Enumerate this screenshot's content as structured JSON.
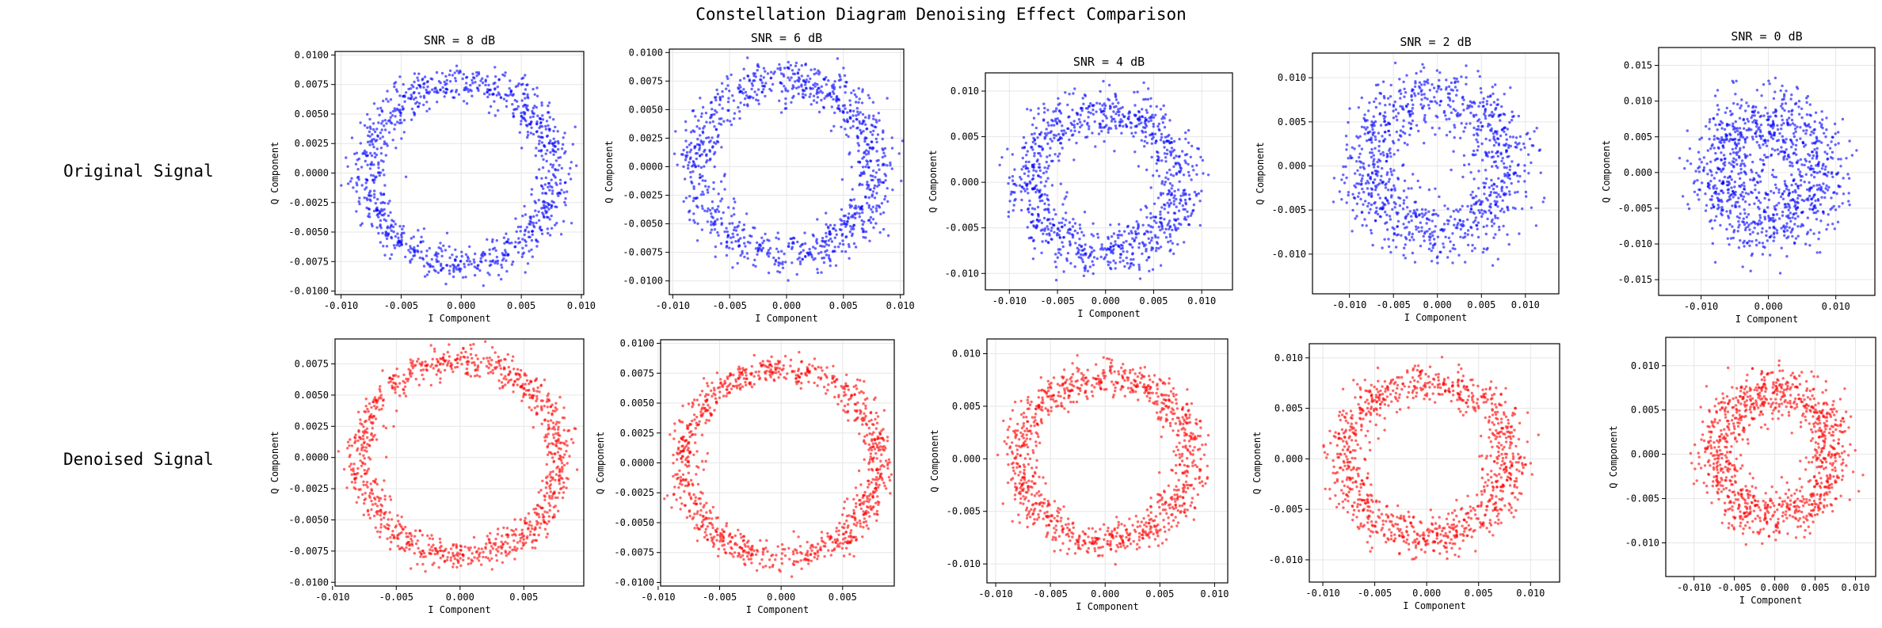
{
  "figure": {
    "title": "Constellation Diagram Denoising Effect Comparison",
    "row_labels": [
      "Original Signal",
      "Denoised Signal"
    ]
  },
  "chart_data": [
    {
      "type": "scatter",
      "row": 0,
      "col": 0,
      "title": "SNR = 8 dB",
      "xlabel": "I Component",
      "ylabel": "Q Component",
      "color": "#0000ff",
      "xlim": [
        -0.0105,
        0.0102
      ],
      "ylim": [
        -0.0103,
        0.0103
      ],
      "xticks": [
        -0.01,
        -0.005,
        0,
        0.005,
        0.01
      ],
      "yticks": [
        -0.01,
        -0.0075,
        -0.005,
        -0.0025,
        0,
        0.0025,
        0.005,
        0.0075,
        0.01
      ],
      "tick_decimals": 4,
      "ring_radius": 0.0078,
      "noise_sigma": 0.00075,
      "n_points": 1000,
      "seed": 11
    },
    {
      "type": "scatter",
      "row": 0,
      "col": 1,
      "title": "SNR = 6 dB",
      "xlabel": "I Component",
      "ylabel": "Q Component",
      "color": "#0000ff",
      "xlim": [
        -0.0103,
        0.0103
      ],
      "ylim": [
        -0.0112,
        0.0103
      ],
      "xticks": [
        -0.01,
        -0.005,
        0,
        0.005,
        0.01
      ],
      "yticks": [
        -0.01,
        -0.0075,
        -0.005,
        -0.0025,
        0,
        0.0025,
        0.005,
        0.0075,
        0.01
      ],
      "tick_decimals": 4,
      "ring_radius": 0.0078,
      "noise_sigma": 0.0009,
      "n_points": 1000,
      "seed": 23
    },
    {
      "type": "scatter",
      "row": 0,
      "col": 2,
      "title": "SNR = 4 dB",
      "xlabel": "I Component",
      "ylabel": "Q Component",
      "color": "#0000ff",
      "xlim": [
        -0.0125,
        0.0132
      ],
      "ylim": [
        -0.0118,
        0.012
      ],
      "xticks": [
        -0.01,
        -0.005,
        0,
        0.005,
        0.01
      ],
      "yticks": [
        -0.01,
        -0.005,
        0,
        0.005,
        0.01
      ],
      "tick_decimals": 3,
      "ring_radius": 0.0078,
      "noise_sigma": 0.0013,
      "n_points": 1000,
      "seed": 37
    },
    {
      "type": "scatter",
      "row": 0,
      "col": 3,
      "title": "SNR = 2 dB",
      "xlabel": "I Component",
      "ylabel": "Q Component",
      "color": "#0000ff",
      "xlim": [
        -0.0142,
        0.0138
      ],
      "ylim": [
        -0.0145,
        0.0128
      ],
      "xticks": [
        -0.01,
        -0.005,
        0,
        0.005,
        0.01
      ],
      "yticks": [
        -0.01,
        -0.005,
        0,
        0.005,
        0.01
      ],
      "tick_decimals": 3,
      "ring_radius": 0.0078,
      "noise_sigma": 0.0017,
      "n_points": 1000,
      "seed": 41
    },
    {
      "type": "scatter",
      "row": 0,
      "col": 4,
      "title": "SNR = 0 dB",
      "xlabel": "I Component",
      "ylabel": "Q Component",
      "color": "#0000ff",
      "xlim": [
        -0.0163,
        0.0158
      ],
      "ylim": [
        -0.0172,
        0.0175
      ],
      "xticks": [
        -0.01,
        0,
        0.01
      ],
      "yticks": [
        -0.015,
        -0.01,
        -0.005,
        0,
        0.005,
        0.01,
        0.015
      ],
      "tick_decimals": 3,
      "ring_radius": 0.0075,
      "noise_sigma": 0.0025,
      "n_points": 1000,
      "seed": 53
    },
    {
      "type": "scatter",
      "row": 1,
      "col": 0,
      "title": "",
      "xlabel": "I Component",
      "ylabel": "Q Component",
      "color": "#ff0000",
      "xlim": [
        -0.0098,
        0.0097
      ],
      "ylim": [
        -0.0103,
        0.0095
      ],
      "xticks": [
        -0.01,
        -0.005,
        0,
        0.005
      ],
      "yticks": [
        -0.01,
        -0.0075,
        -0.005,
        -0.0025,
        0,
        0.0025,
        0.005,
        0.0075
      ],
      "tick_decimals": 4,
      "ring_radius": 0.0078,
      "noise_sigma": 0.0006,
      "n_points": 1000,
      "seed": 61
    },
    {
      "type": "scatter",
      "row": 1,
      "col": 1,
      "title": "",
      "xlabel": "I Component",
      "ylabel": "Q Component",
      "color": "#ff0000",
      "xlim": [
        -0.0098,
        0.0092
      ],
      "ylim": [
        -0.0103,
        0.0103
      ],
      "xticks": [
        -0.01,
        -0.005,
        0,
        0.005
      ],
      "yticks": [
        -0.01,
        -0.0075,
        -0.005,
        -0.0025,
        0,
        0.0025,
        0.005,
        0.0075,
        0.01
      ],
      "tick_decimals": 4,
      "ring_radius": 0.0079,
      "noise_sigma": 0.0006,
      "n_points": 1000,
      "seed": 71
    },
    {
      "type": "scatter",
      "row": 1,
      "col": 2,
      "title": "",
      "xlabel": "I Component",
      "ylabel": "Q Component",
      "color": "#ff0000",
      "xlim": [
        -0.0108,
        0.0112
      ],
      "ylim": [
        -0.0118,
        0.0114
      ],
      "xticks": [
        -0.01,
        -0.005,
        0,
        0.005,
        0.01
      ],
      "yticks": [
        -0.01,
        -0.005,
        0,
        0.005,
        0.01
      ],
      "tick_decimals": 3,
      "ring_radius": 0.0078,
      "noise_sigma": 0.0008,
      "n_points": 1000,
      "seed": 83
    },
    {
      "type": "scatter",
      "row": 1,
      "col": 3,
      "title": "",
      "xlabel": "I Component",
      "ylabel": "Q Component",
      "color": "#ff0000",
      "xlim": [
        -0.0113,
        0.0128
      ],
      "ylim": [
        -0.0122,
        0.0114
      ],
      "xticks": [
        -0.01,
        -0.005,
        0,
        0.005,
        0.01
      ],
      "yticks": [
        -0.01,
        -0.005,
        0,
        0.005,
        0.01
      ],
      "tick_decimals": 3,
      "ring_radius": 0.0078,
      "noise_sigma": 0.001,
      "n_points": 1000,
      "seed": 97
    },
    {
      "type": "scatter",
      "row": 1,
      "col": 4,
      "title": "",
      "xlabel": "I Component",
      "ylabel": "Q Component",
      "color": "#ff0000",
      "xlim": [
        -0.0135,
        0.0125
      ],
      "ylim": [
        -0.0138,
        0.0132
      ],
      "xticks": [
        -0.01,
        -0.005,
        0,
        0.005,
        0.01
      ],
      "yticks": [
        -0.01,
        -0.005,
        0,
        0.005,
        0.01
      ],
      "tick_decimals": 3,
      "ring_radius": 0.0072,
      "noise_sigma": 0.0013,
      "n_points": 1000,
      "seed": 101
    }
  ]
}
